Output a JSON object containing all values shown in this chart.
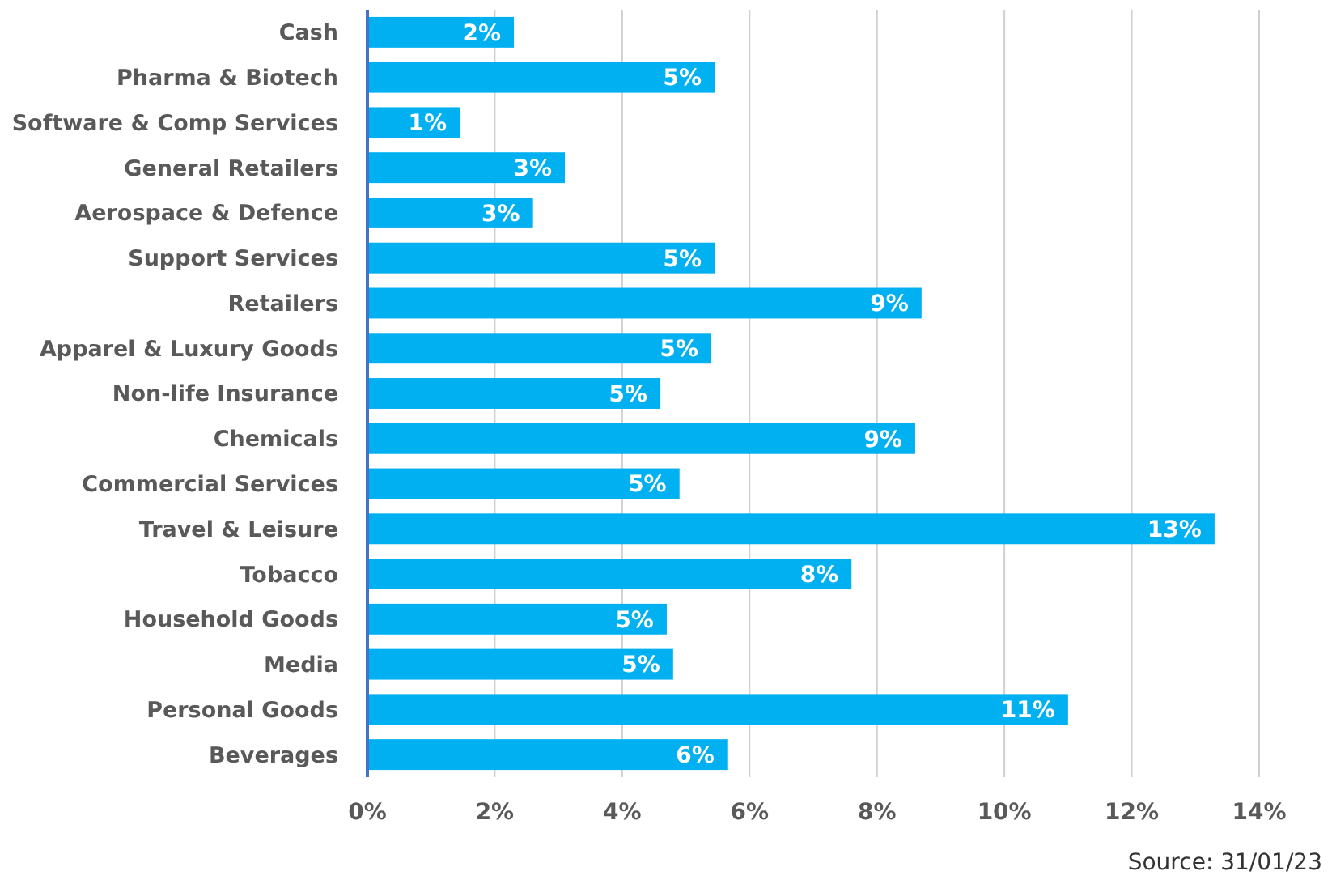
{
  "chart_data": {
    "type": "bar",
    "orientation": "horizontal",
    "categories": [
      "Cash",
      "Pharma & Biotech",
      "Software & Comp Services",
      "General Retailers",
      "Aerospace & Defence",
      "Support Services",
      "Retailers",
      "Apparel & Luxury Goods",
      "Non-life Insurance",
      "Chemicals",
      "Commercial Services",
      "Travel & Leisure",
      "Tobacco",
      "Household Goods",
      "Media",
      "Personal Goods",
      "Beverages"
    ],
    "values": [
      2.3,
      5.45,
      1.45,
      3.1,
      2.6,
      5.45,
      8.7,
      5.4,
      4.6,
      8.6,
      4.9,
      13.3,
      7.6,
      4.7,
      4.8,
      11.0,
      5.65
    ],
    "value_labels": [
      "2%",
      "5%",
      "1%",
      "3%",
      "3%",
      "5%",
      "9%",
      "5%",
      "5%",
      "9%",
      "5%",
      "13%",
      "8%",
      "5%",
      "5%",
      "11%",
      "6%"
    ],
    "color": "#00b0f0",
    "xlim": [
      0,
      14
    ],
    "xticks": [
      {
        "value": 0,
        "label": "0%"
      },
      {
        "value": 2,
        "label": "2%"
      },
      {
        "value": 4,
        "label": "4%"
      },
      {
        "value": 6,
        "label": "6%"
      },
      {
        "value": 8,
        "label": "8%"
      },
      {
        "value": 10,
        "label": "10%"
      },
      {
        "value": 12,
        "label": "12%"
      },
      {
        "value": 14,
        "label": "14%"
      }
    ],
    "grid": "x",
    "annotations": [
      "Source: 31/01/23"
    ]
  }
}
